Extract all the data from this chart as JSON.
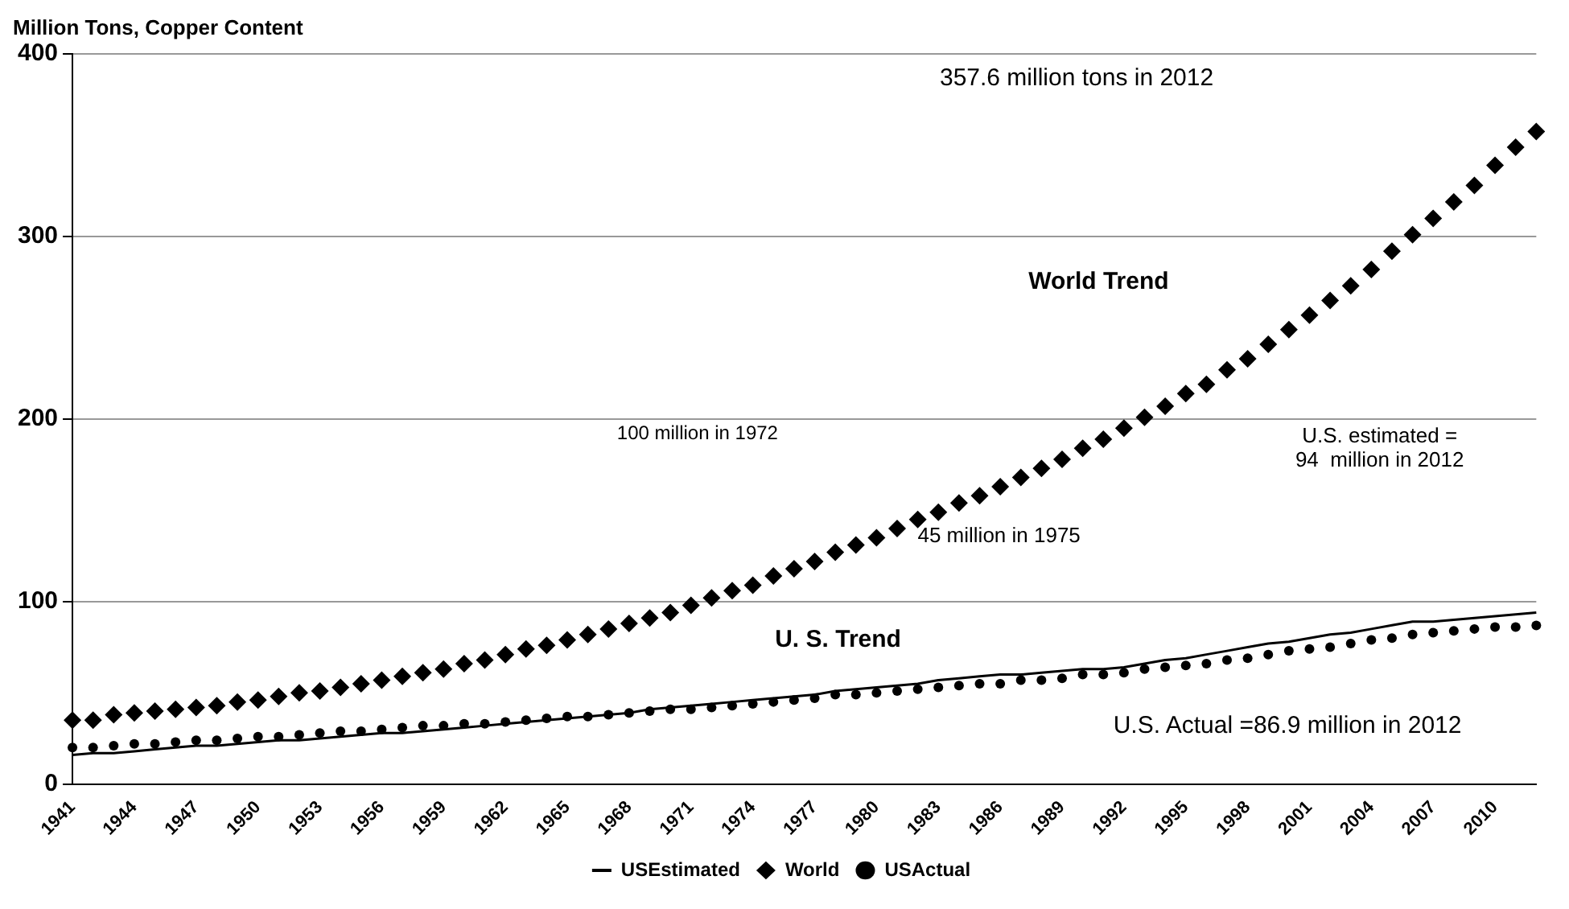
{
  "chart_data": {
    "type": "line",
    "ylabel": "Million Tons, Copper Content",
    "categories": [
      "1941",
      null,
      null,
      "1944",
      null,
      null,
      "1947",
      null,
      null,
      "1950",
      null,
      null,
      "1953",
      null,
      null,
      "1956",
      null,
      null,
      "1959",
      null,
      null,
      "1962",
      null,
      null,
      "1965",
      null,
      null,
      "1968",
      null,
      null,
      "1971",
      null,
      null,
      "1974",
      null,
      null,
      "1977",
      null,
      null,
      "1980",
      null,
      null,
      "1983",
      null,
      null,
      "1986",
      null,
      null,
      "1989",
      null,
      null,
      "1992",
      null,
      null,
      "1995",
      null,
      null,
      "1998",
      null,
      null,
      "2001",
      null,
      null,
      "2004",
      null,
      null,
      "2007",
      null,
      null,
      "2010",
      null,
      null
    ],
    "series": [
      {
        "name": "USEstimated",
        "color": "#000000",
        "marker": "none",
        "values": [
          16,
          17,
          17,
          18,
          19,
          20,
          21,
          21,
          22,
          23,
          24,
          24,
          25,
          26,
          27,
          28,
          28,
          29,
          30,
          31,
          32,
          33,
          34,
          35,
          36,
          37,
          38,
          39,
          41,
          42,
          43,
          44,
          45,
          46,
          47,
          48,
          49,
          51,
          52,
          53,
          54,
          55,
          57,
          58,
          59,
          60,
          60,
          61,
          62,
          63,
          63,
          64,
          66,
          68,
          69,
          71,
          73,
          75,
          77,
          78,
          80,
          82,
          83,
          85,
          87,
          89,
          89,
          90,
          91,
          92,
          93,
          94
        ]
      },
      {
        "name": "World",
        "type": "scatter",
        "color": "#000000",
        "marker": "diamond",
        "values": [
          35,
          35,
          38,
          39,
          40,
          41,
          42,
          43,
          45,
          46,
          48,
          50,
          51,
          53,
          55,
          57,
          59,
          61,
          63,
          66,
          68,
          71,
          74,
          76,
          79,
          82,
          85,
          88,
          91,
          94,
          98,
          102,
          106,
          109,
          114,
          118,
          122,
          127,
          131,
          135,
          140,
          145,
          149,
          154,
          158,
          163,
          168,
          173,
          178,
          184,
          189,
          195,
          201,
          207,
          214,
          219,
          227,
          233,
          241,
          249,
          257,
          265,
          273,
          282,
          292,
          301,
          310,
          319,
          328,
          339,
          349,
          357.6
        ]
      },
      {
        "name": "USActual",
        "type": "scatter",
        "color": "#000000",
        "marker": "circle",
        "values": [
          20,
          20,
          21,
          22,
          22,
          23,
          24,
          24,
          25,
          26,
          26,
          27,
          28,
          29,
          29,
          30,
          31,
          32,
          32,
          33,
          33,
          34,
          35,
          36,
          37,
          37,
          38,
          39,
          40,
          41,
          41,
          42,
          43,
          44,
          45,
          46,
          47,
          49,
          49,
          50,
          51,
          52,
          53,
          54,
          55,
          55,
          57,
          57,
          58,
          60,
          60,
          61,
          63,
          64,
          65,
          66,
          68,
          69,
          71,
          73,
          74,
          75,
          77,
          79,
          80,
          82,
          83,
          84,
          85,
          86,
          86,
          86.9
        ]
      }
    ],
    "ylim": [
      0,
      400
    ],
    "yticks": [
      0,
      100,
      200,
      300,
      400
    ],
    "grid": "y",
    "legend": "bottom",
    "annotations": [
      "357.6 million tons in 2012",
      "World Trend",
      "100 million in 1972",
      "U.S. estimated =\n94  million in 2012",
      "45 million in 1975",
      "U. S. Trend",
      "U.S. Actual =86.9 million in 2012"
    ]
  }
}
